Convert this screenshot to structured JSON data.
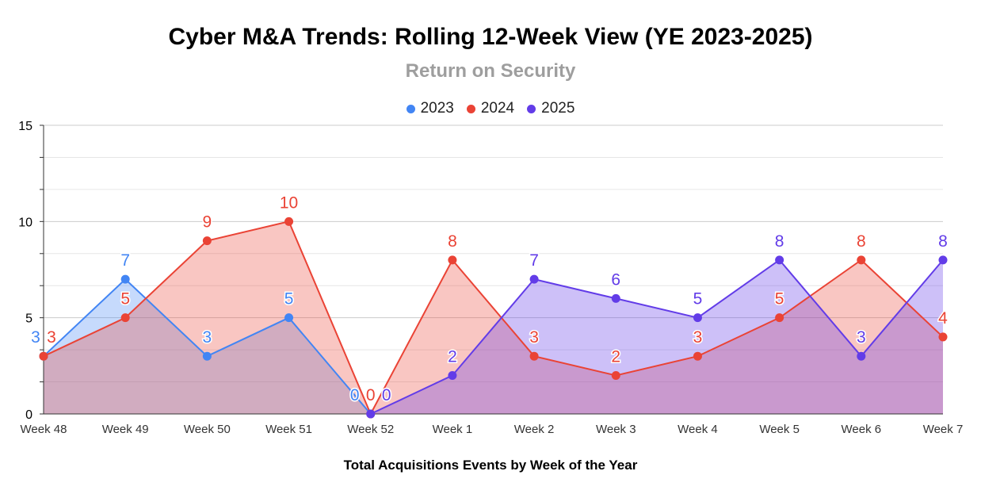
{
  "chart_data": {
    "type": "area",
    "title": "Cyber M&A Trends: Rolling 12-Week View (YE 2023-2025)",
    "subtitle": "Return on Security",
    "xlabel": "Total Acquisitions Events by Week of the Year",
    "ylabel": "",
    "ylim": [
      0,
      15
    ],
    "yticks": [
      0,
      5,
      10,
      15
    ],
    "grid": true,
    "legend_position": "top",
    "categories": [
      "Week 48",
      "Week 49",
      "Week 50",
      "Week 51",
      "Week 52",
      "Week 1",
      "Week 2",
      "Week 3",
      "Week 4",
      "Week 5",
      "Week 6",
      "Week 7"
    ],
    "series": [
      {
        "name": "2023",
        "color": "#4285f4",
        "values": [
          3,
          7,
          3,
          5,
          0,
          null,
          null,
          null,
          null,
          null,
          null,
          null
        ]
      },
      {
        "name": "2024",
        "color": "#ea4335",
        "values": [
          3,
          5,
          9,
          10,
          0,
          8,
          3,
          2,
          3,
          5,
          8,
          4
        ]
      },
      {
        "name": "2025",
        "color": "#623ce8",
        "values": [
          null,
          null,
          null,
          null,
          0,
          2,
          7,
          6,
          5,
          8,
          3,
          8
        ]
      }
    ]
  }
}
